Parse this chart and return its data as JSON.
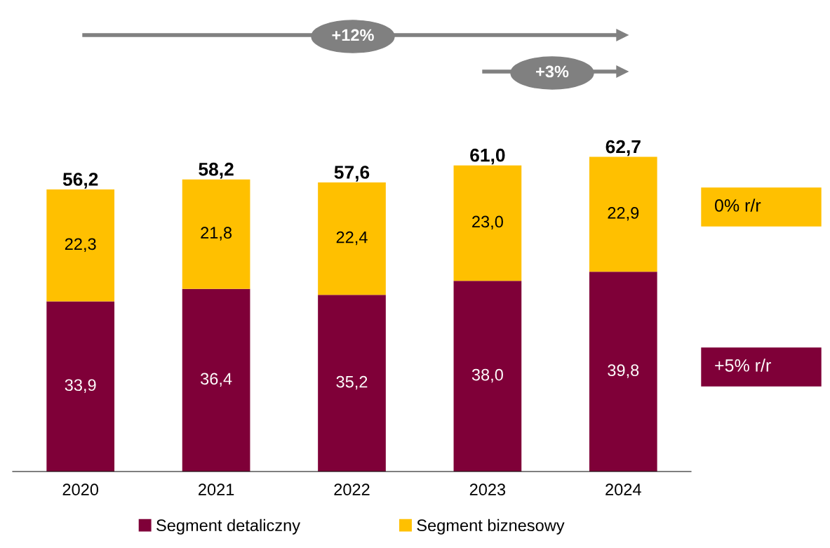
{
  "chart_data": {
    "type": "bar",
    "stacked": true,
    "categories": [
      "2020",
      "2021",
      "2022",
      "2023",
      "2024"
    ],
    "series": [
      {
        "name": "Segment detaliczny",
        "color": "#7f0038",
        "values": [
          33.9,
          36.4,
          35.2,
          38.0,
          39.8
        ],
        "value_labels": [
          "33,9",
          "36,4",
          "35,2",
          "38,0",
          "39,8"
        ]
      },
      {
        "name": "Segment biznesowy",
        "color": "#ffc000",
        "values": [
          22.3,
          21.8,
          22.4,
          23.0,
          22.9
        ],
        "value_labels": [
          "22,3",
          "21,8",
          "22,4",
          "23,0",
          "22,9"
        ]
      }
    ],
    "totals": [
      "56,2",
      "58,2",
      "57,6",
      "61,0",
      "62,7"
    ],
    "annotations": [
      "+12%",
      "+3%",
      "0% r/r",
      "+5% r/r"
    ],
    "legend": "bottom",
    "grid": false
  }
}
